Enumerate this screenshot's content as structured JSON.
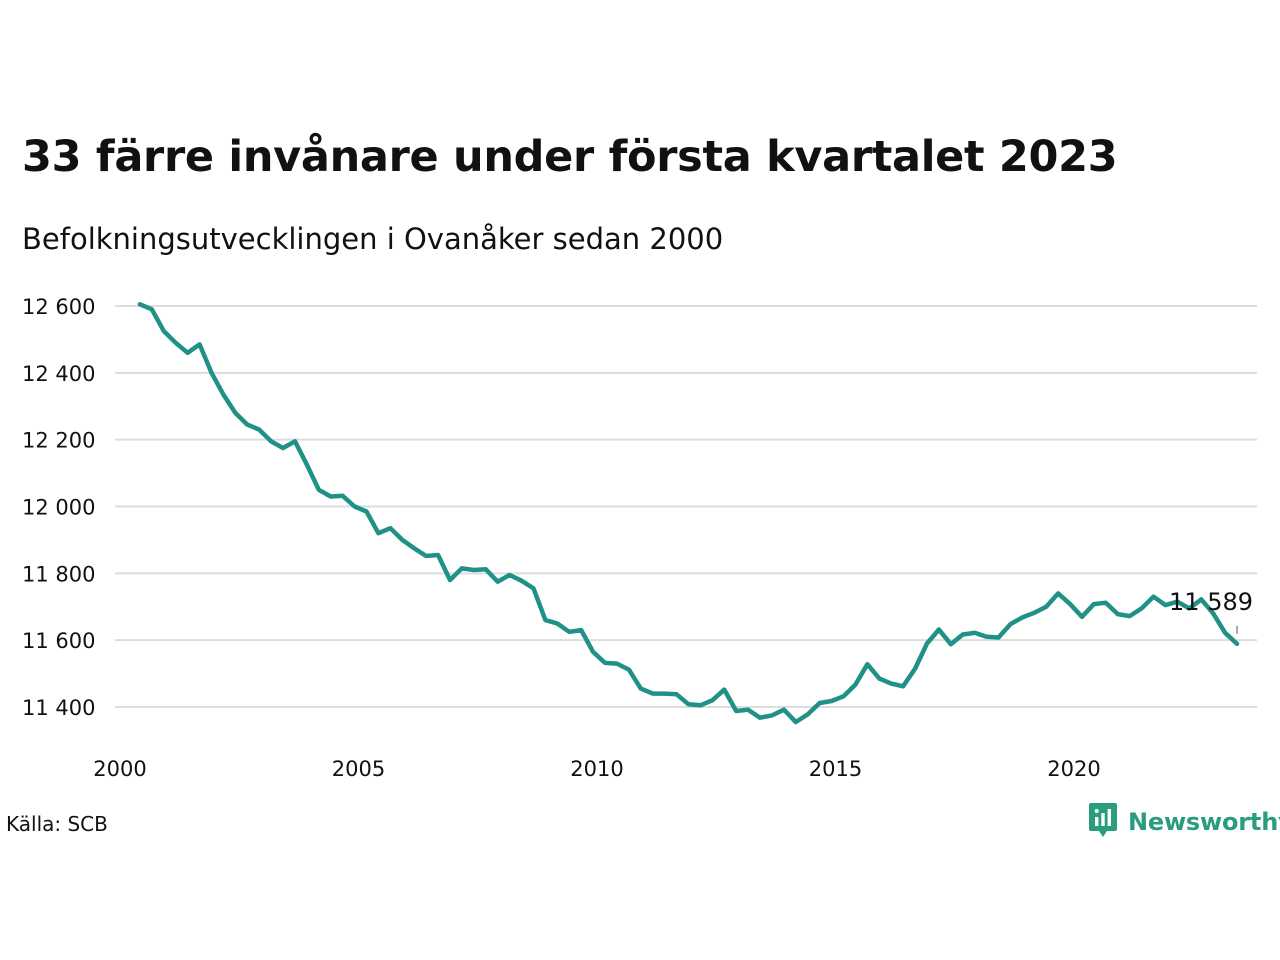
{
  "title": "33 färre invånare under första kvartalet 2023",
  "subtitle": "Befolkningsutvecklingen i Ovanåker sedan 2000",
  "source": "Källa: SCB",
  "brand": "Newsworthy",
  "colors": {
    "line": "#1f9186",
    "grid": "#dddddd",
    "brand": "#2a9d7f"
  },
  "chart_data": {
    "type": "line",
    "ylim": [
      11350,
      12620
    ],
    "xlim": [
      2000,
      2024.4
    ],
    "yticks": [
      11400,
      11600,
      11800,
      12000,
      12200,
      12400,
      12600
    ],
    "ytick_labels": [
      "11 400",
      "11 600",
      "11 800",
      "12 000",
      "12 200",
      "12 400",
      "12 600"
    ],
    "xticks": [
      2000,
      2005,
      2010,
      2015,
      2020
    ],
    "xtick_labels": [
      "2000",
      "2005",
      "2010",
      "2015",
      "2020"
    ],
    "grid": true,
    "end_label": "11 589",
    "x": [
      2000.25,
      2000.5,
      2000.75,
      2001,
      2001.25,
      2001.5,
      2001.75,
      2002,
      2002.25,
      2002.5,
      2002.75,
      2003,
      2003.25,
      2003.5,
      2003.75,
      2004,
      2004.25,
      2004.5,
      2004.75,
      2005,
      2005.25,
      2005.5,
      2005.75,
      2006,
      2006.25,
      2006.5,
      2006.75,
      2007,
      2007.25,
      2007.5,
      2007.75,
      2008,
      2008.25,
      2008.5,
      2008.75,
      2009,
      2009.25,
      2009.5,
      2009.75,
      2010,
      2010.25,
      2010.5,
      2010.75,
      2011,
      2011.25,
      2011.5,
      2011.75,
      2012,
      2012.25,
      2012.5,
      2012.75,
      2013,
      2013.25,
      2013.5,
      2013.75,
      2014,
      2014.25,
      2014.5,
      2014.75,
      2015,
      2015.25,
      2015.5,
      2015.75,
      2016,
      2016.25,
      2016.5,
      2016.75,
      2017,
      2017.25,
      2017.5,
      2017.75,
      2018,
      2018.25,
      2018.5,
      2018.75,
      2019,
      2019.25,
      2019.5,
      2019.75,
      2020,
      2020.25,
      2020.5,
      2020.75,
      2021,
      2021.25,
      2021.5,
      2021.75,
      2022,
      2022.25,
      2022.5,
      2022.75,
      2023,
      2023.25
    ],
    "values": [
      12605,
      12590,
      12525,
      12490,
      12460,
      12485,
      12400,
      12335,
      12280,
      12245,
      12230,
      12195,
      12175,
      12195,
      12125,
      12050,
      12030,
      12032,
      12000,
      11985,
      11920,
      11935,
      11900,
      11875,
      11852,
      11855,
      11780,
      11815,
      11810,
      11812,
      11775,
      11795,
      11778,
      11755,
      11660,
      11650,
      11625,
      11630,
      11565,
      11532,
      11530,
      11512,
      11455,
      11440,
      11440,
      11438,
      11408,
      11405,
      11420,
      11452,
      11388,
      11392,
      11368,
      11375,
      11392,
      11355,
      11378,
      11412,
      11418,
      11432,
      11467,
      11528,
      11485,
      11470,
      11462,
      11515,
      11590,
      11632,
      11588,
      11617,
      11622,
      11610,
      11608,
      11648,
      11668,
      11682,
      11700,
      11740,
      11708,
      11670,
      11708,
      11712,
      11678,
      11672,
      11695,
      11730,
      11705,
      11715,
      11695,
      11722,
      11680,
      11622,
      11589
    ]
  }
}
